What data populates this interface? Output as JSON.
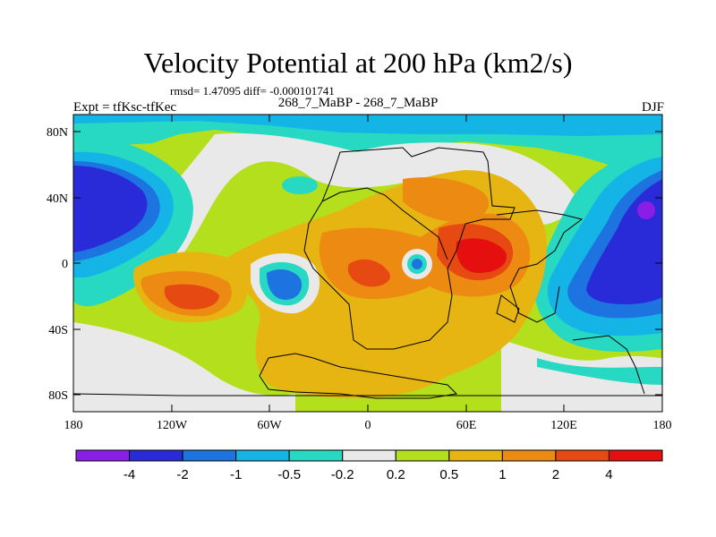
{
  "title": "Velocity Potential at 200 hPa (km2/s)",
  "stats": "rmsd= 1.47095 diff= -0.000101741",
  "left_label": "Expt = tfKsc-tfKec",
  "center_label": "268_7_MaBP - 268_7_MaBP",
  "right_label": "DJF",
  "lat_ticks": [
    "80N",
    "40N",
    "0",
    "40S",
    "80S"
  ],
  "lon_ticks": [
    "180",
    "120W",
    "60W",
    "0",
    "60E",
    "120E",
    "180"
  ],
  "colorbar": {
    "labels": [
      "-4",
      "-2",
      "-1",
      "-0.5",
      "-0.2",
      "0.2",
      "0.5",
      "1",
      "2",
      "4"
    ],
    "colors": [
      "#8a1ee6",
      "#2a2bd8",
      "#1d74e0",
      "#14b4e6",
      "#27d8c2",
      "#e9e9e9",
      "#b4df1c",
      "#e6b512",
      "#ed8a12",
      "#e64a12",
      "#e50f0f"
    ]
  },
  "chart_data": {
    "type": "filled-contour-map",
    "title": "Velocity Potential at 200 hPa (km2/s)",
    "subtitle": "268_7_MaBP - 268_7_MaBP",
    "season": "DJF",
    "lon_range": [
      -180,
      180
    ],
    "lat_range": [
      -90,
      90
    ],
    "levels": [
      -4,
      -2,
      -1,
      -0.5,
      -0.2,
      0.2,
      0.5,
      1,
      2,
      4
    ],
    "features": [
      {
        "name": "west pacific minimum",
        "lon": -160,
        "lat": 30,
        "value": -2
      },
      {
        "name": "east pacific minimum",
        "lon": 150,
        "lat": 0,
        "value": -2
      },
      {
        "name": "isolated low",
        "lon": -50,
        "lat": -10,
        "value": -1
      },
      {
        "name": "central ring low",
        "lon": 30,
        "lat": 0,
        "value": -1
      },
      {
        "name": "eastern tropical maximum",
        "lon": 75,
        "lat": 0,
        "value": 4
      },
      {
        "name": "western tropical maximum",
        "lon": -110,
        "lat": -20,
        "value": 2
      },
      {
        "name": "central maximum",
        "lon": 10,
        "lat": -5,
        "value": 2
      }
    ]
  }
}
